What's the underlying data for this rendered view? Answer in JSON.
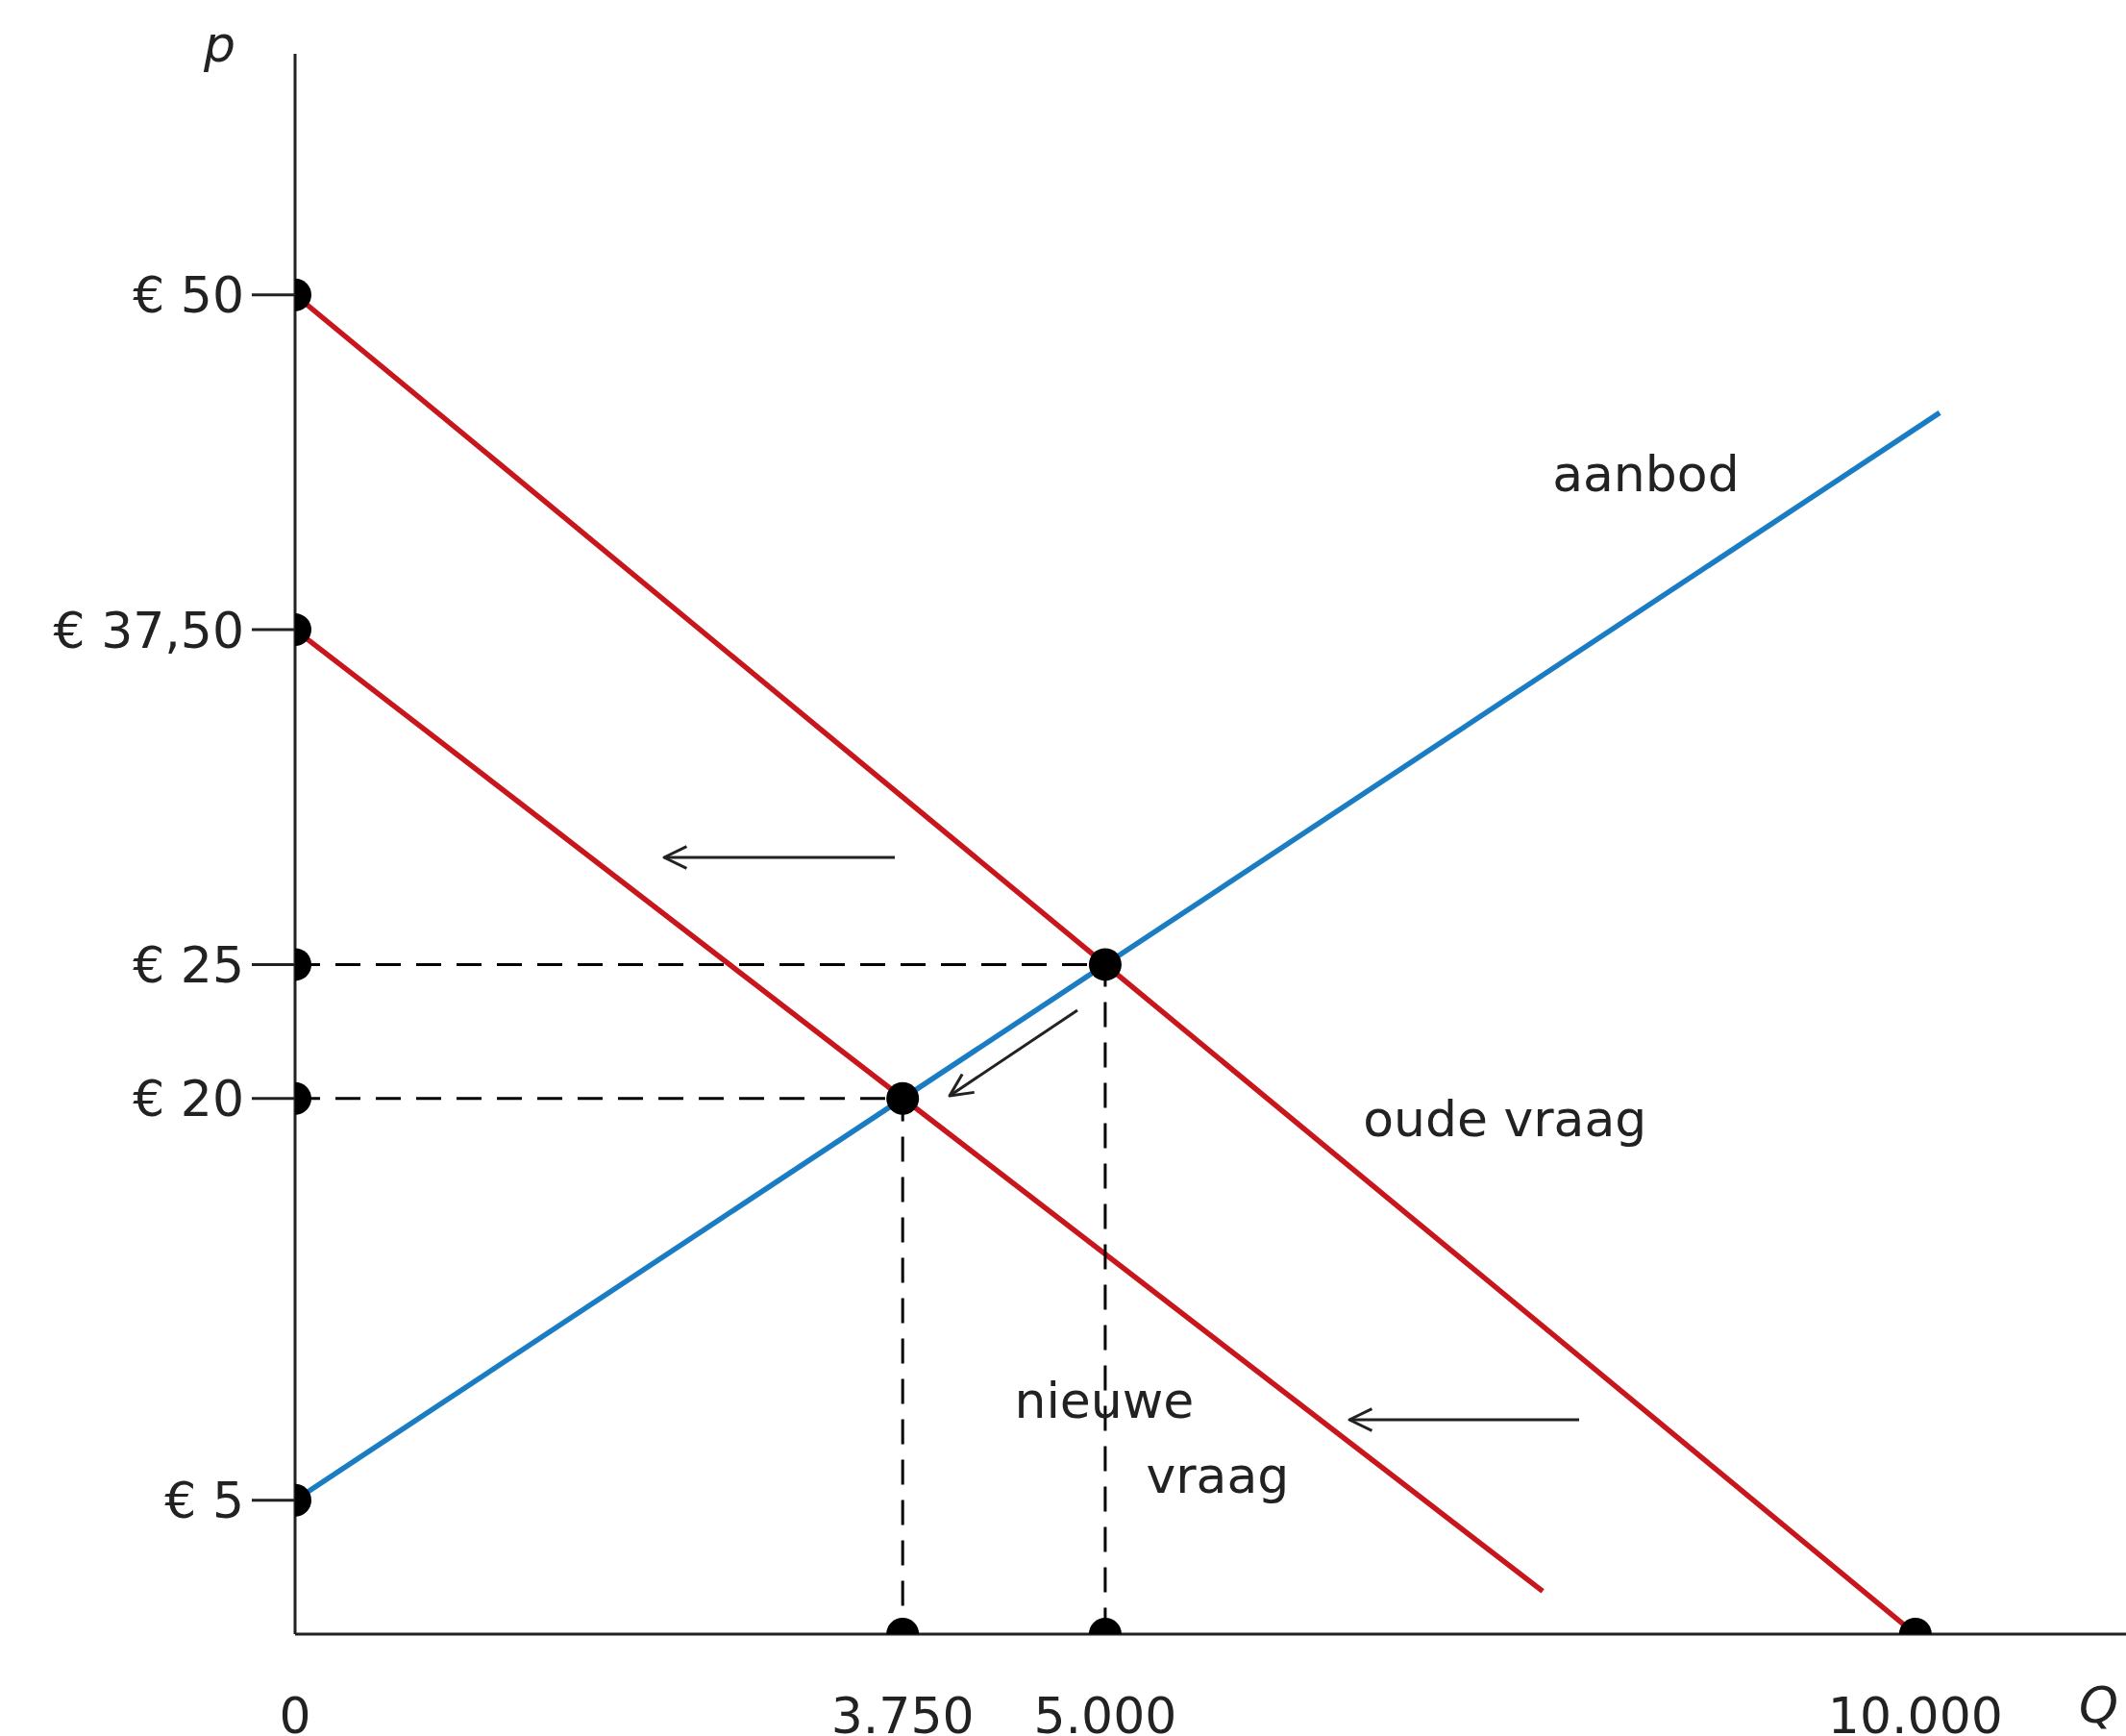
{
  "chart_data": {
    "type": "line",
    "xlabel": "Q",
    "ylabel": "p",
    "xlim": [
      0,
      11300
    ],
    "ylim": [
      0,
      59
    ],
    "xticks": [
      0,
      {
        "value": 3750,
        "label": "3.750"
      },
      {
        "value": 5000,
        "label": "5.000"
      },
      {
        "value": 10000,
        "label": "10.000"
      }
    ],
    "yticks": [
      {
        "value": 5,
        "label": "€ 5"
      },
      {
        "value": 20,
        "label": "€ 20"
      },
      {
        "value": 25,
        "label": "€ 25"
      },
      {
        "value": 37.5,
        "label": "€ 37,50"
      },
      {
        "value": 50,
        "label": "€ 50"
      }
    ],
    "grid": false,
    "legend": false,
    "marker": "none",
    "series": [
      {
        "name": "aanbod",
        "color": "#1a7dc4",
        "x": [
          0,
          10150
        ],
        "values": [
          5,
          45.6
        ]
      },
      {
        "name": "oude vraag",
        "color": "#c8161d",
        "x": [
          0,
          10000
        ],
        "values": [
          50,
          0
        ]
      },
      {
        "name": "nieuwe vraag",
        "color": "#c8161d",
        "x": [
          0,
          7700
        ],
        "values": [
          37.5,
          1.6
        ]
      },
      {
        "type": "line",
        "color": "#000000",
        "line_style": "dashed",
        "x": [
          0,
          5000,
          5000
        ],
        "values": [
          25,
          25,
          0
        ]
      },
      {
        "type": "line",
        "color": "#000000",
        "line_style": "dashed",
        "x": [
          0,
          3750,
          3750
        ],
        "values": [
          20,
          20,
          0
        ]
      },
      {
        "type": "scatter",
        "color": "#000000",
        "marker": "circle",
        "x": [
          0,
          0,
          0,
          0,
          0,
          3750,
          5000,
          10000,
          5000,
          3750
        ],
        "values": [
          50,
          37.5,
          25,
          20,
          5,
          0,
          0,
          0,
          25,
          20
        ]
      }
    ]
  }
}
